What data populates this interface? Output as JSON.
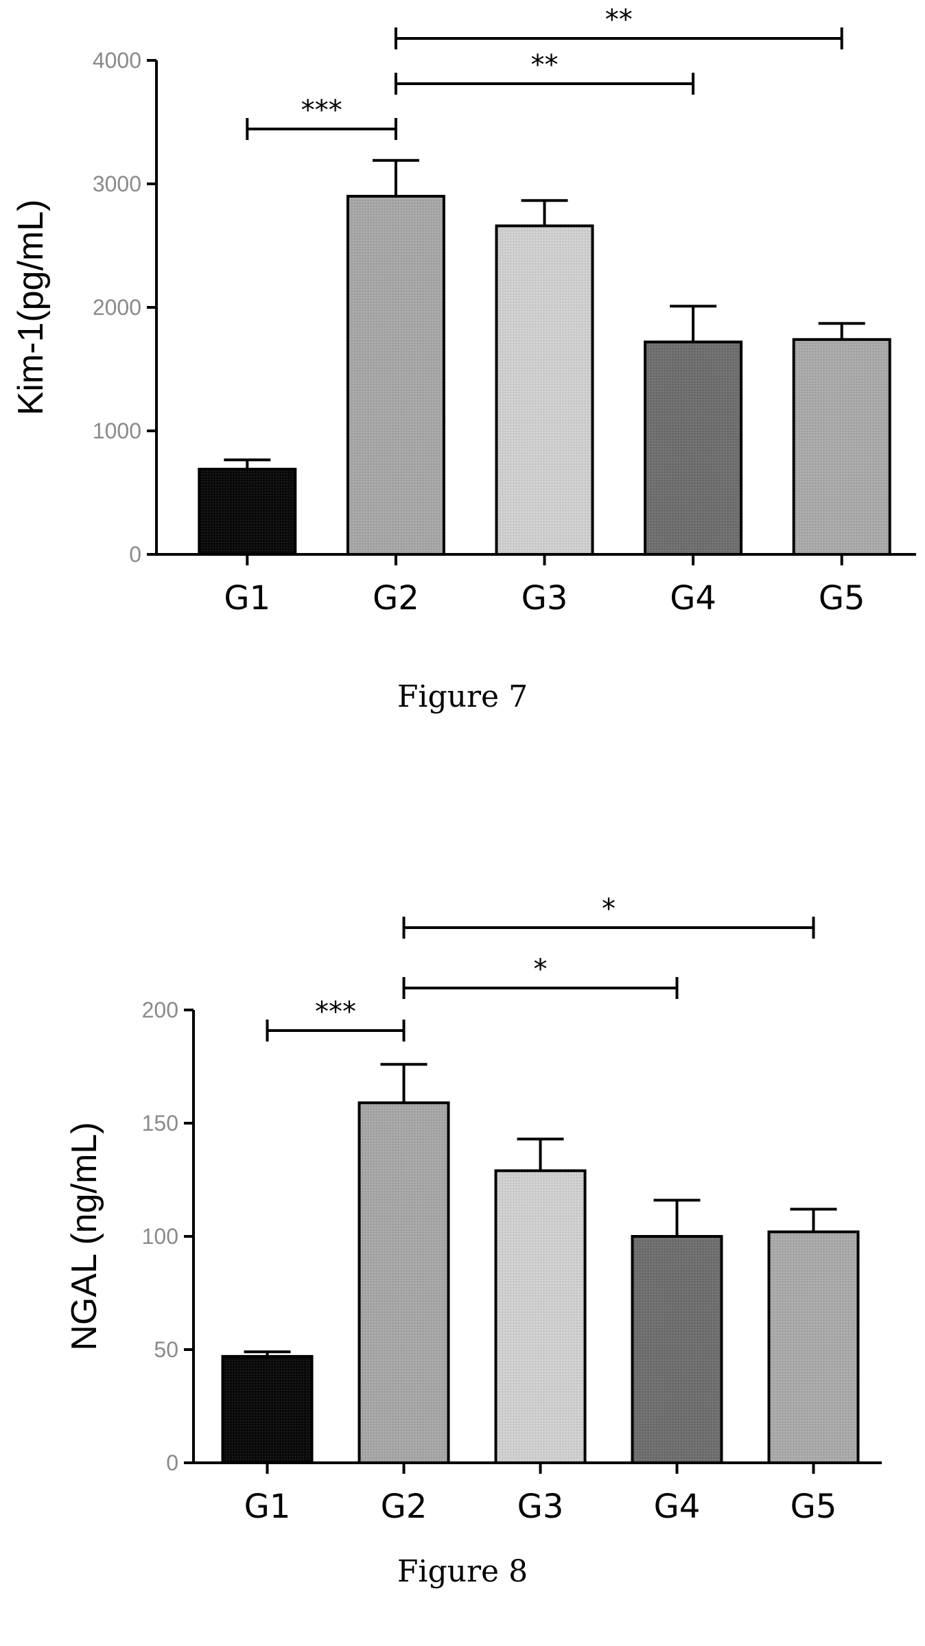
{
  "chart_data": [
    {
      "type": "bar",
      "categories": [
        "G1",
        "G2",
        "G3",
        "G4",
        "G5"
      ],
      "values": [
        690,
        2900,
        2660,
        1720,
        1740
      ],
      "errors": [
        75,
        290,
        205,
        290,
        130
      ],
      "bar_colors": [
        "#0a0a0a",
        "#a6a6a6",
        "#cfcfcf",
        "#6e6e6e",
        "#a9a9a9"
      ],
      "ylabel": "Kim-1(pg/mL)",
      "ylim": [
        0,
        4000
      ],
      "yticks": [
        "0",
        "1000",
        "2000",
        "3000",
        "4000"
      ],
      "grid": false,
      "significance": [
        {
          "from": "G1",
          "to": "G2",
          "label": "***"
        },
        {
          "from": "G2",
          "to": "G4",
          "label": "**"
        },
        {
          "from": "G2",
          "to": "G5",
          "label": "**"
        }
      ]
    },
    {
      "type": "bar",
      "categories": [
        "G1",
        "G2",
        "G3",
        "G4",
        "G5"
      ],
      "values": [
        47,
        159,
        129,
        100,
        102
      ],
      "errors": [
        2,
        17,
        14,
        16,
        10
      ],
      "bar_colors": [
        "#0a0a0a",
        "#a6a6a6",
        "#cfcfcf",
        "#6e6e6e",
        "#a9a9a9"
      ],
      "ylabel": "NGAL (ng/mL)",
      "ylim": [
        0,
        200
      ],
      "yticks": [
        "0",
        "50",
        "100",
        "150",
        "200"
      ],
      "grid": false,
      "significance": [
        {
          "from": "G1",
          "to": "G2",
          "label": "***"
        },
        {
          "from": "G2",
          "to": "G4",
          "label": "*"
        },
        {
          "from": "G2",
          "to": "G5",
          "label": "*"
        }
      ]
    }
  ],
  "captions": {
    "figure7": "Figure 7",
    "figure8": "Figure 8"
  }
}
